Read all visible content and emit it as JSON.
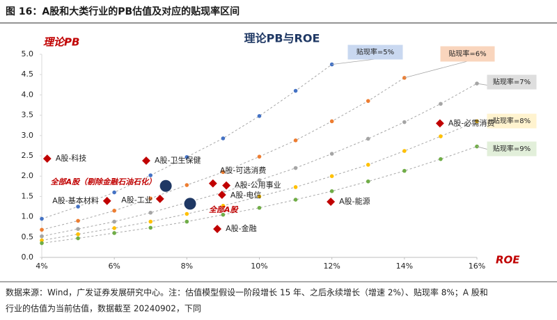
{
  "figure_title": "图 16：A股和大类行业的PB估值及对应的贴现率区间",
  "source": [
    "数据来源：Wind，广发证券发展研究中心。注：估值模型假设一阶段增长 15 年、之后永续增长（增速 2%）、贴现率 8%；A 股和",
    "行业的估值为当前估值，数据截至 20240902，下同"
  ],
  "chart_data": {
    "type": "scatter",
    "title": "理论PB与ROE",
    "y_label": "理论PB",
    "x_label": "ROE",
    "xlim": [
      4,
      16
    ],
    "xticks": [
      {
        "value": 4,
        "label": "4%"
      },
      {
        "value": 6,
        "label": "6%"
      },
      {
        "value": 8,
        "label": "8%"
      },
      {
        "value": 10,
        "label": "10%"
      },
      {
        "value": 12,
        "label": "12%"
      },
      {
        "value": 14,
        "label": "14%"
      },
      {
        "value": 16,
        "label": "16%"
      }
    ],
    "ylim": [
      0,
      5
    ],
    "yticks": [
      {
        "value": 0,
        "label": "0.0"
      },
      {
        "value": 0.5,
        "label": "0.5"
      },
      {
        "value": 1,
        "label": "1.0"
      },
      {
        "value": 1.5,
        "label": "1.5"
      },
      {
        "value": 2,
        "label": "2.0"
      },
      {
        "value": 2.5,
        "label": "2.5"
      },
      {
        "value": 3,
        "label": "3.0"
      },
      {
        "value": 3.5,
        "label": "3.5"
      },
      {
        "value": 4,
        "label": "4.0"
      },
      {
        "value": 4.5,
        "label": "4.5"
      },
      {
        "value": 5,
        "label": "5.0"
      }
    ],
    "series": [
      {
        "name": "贴现率=5%",
        "color": "#4472c4",
        "box_color": "#c9d8f0",
        "x": [
          4,
          5,
          6,
          7,
          8,
          9,
          10,
          11,
          12
        ],
        "values": [
          0.95,
          1.25,
          1.6,
          2.02,
          2.47,
          2.93,
          3.48,
          4.1,
          4.75
        ]
      },
      {
        "name": "贴现率=6%",
        "color": "#ed7d31",
        "box_color": "#f9d5bd",
        "x": [
          4,
          5,
          6,
          7,
          8,
          9,
          10,
          11,
          12,
          13,
          14
        ],
        "values": [
          0.68,
          0.9,
          1.15,
          1.45,
          1.78,
          2.1,
          2.48,
          2.88,
          3.35,
          3.85,
          4.42
        ]
      },
      {
        "name": "贴现率=7%",
        "color": "#a5a5a5",
        "box_color": "#dedede",
        "x": [
          4,
          5,
          6,
          7,
          8,
          9,
          10,
          11,
          12,
          13,
          14,
          15,
          16
        ],
        "values": [
          0.52,
          0.7,
          0.88,
          1.1,
          1.35,
          1.6,
          1.9,
          2.2,
          2.55,
          2.92,
          3.33,
          3.78,
          4.28
        ]
      },
      {
        "name": "贴现率=8%",
        "color": "#ffc000",
        "box_color": "#fff3cf",
        "x": [
          4,
          5,
          6,
          7,
          8,
          9,
          10,
          11,
          12,
          13,
          14,
          15,
          16
        ],
        "values": [
          0.42,
          0.57,
          0.72,
          0.88,
          1.07,
          1.27,
          1.5,
          1.73,
          2.0,
          2.28,
          2.62,
          2.98,
          3.35
        ]
      },
      {
        "name": "贴现率=9%",
        "color": "#70ad47",
        "box_color": "#e2efda",
        "x": [
          4,
          5,
          6,
          7,
          8,
          9,
          10,
          11,
          12,
          13,
          14,
          15,
          16
        ],
        "values": [
          0.35,
          0.47,
          0.6,
          0.73,
          0.88,
          1.05,
          1.22,
          1.42,
          1.63,
          1.87,
          2.13,
          2.42,
          2.73
        ]
      }
    ],
    "sectors": {
      "color": "#c00000",
      "points": [
        {
          "label": "A股-科技",
          "x": 4.15,
          "y": 2.43
        },
        {
          "label": "A股-卫生保健",
          "x": 6.88,
          "y": 2.38
        },
        {
          "label": "A股-可选消费",
          "x": 8.72,
          "y": 1.82
        },
        {
          "label": "A股-公用事业",
          "x": 9.09,
          "y": 1.77
        },
        {
          "label": "A股-电信",
          "x": 8.97,
          "y": 1.54
        },
        {
          "label": "A股-基本材料",
          "x": 5.8,
          "y": 1.39
        },
        {
          "label": "A股-工业",
          "x": 7.26,
          "y": 1.44
        },
        {
          "label": "A股-能源",
          "x": 11.97,
          "y": 1.37
        },
        {
          "label": "A股-金融",
          "x": 8.84,
          "y": 0.7
        },
        {
          "label": "A股-必需消费",
          "x": 14.98,
          "y": 3.3
        }
      ]
    },
    "market": {
      "color": "#1f3864",
      "label_color": "#c00000",
      "points": [
        {
          "label": "全部A股（剔除金融石油石化）",
          "x": 7.42,
          "y": 1.76
        },
        {
          "label": "全部A股",
          "x": 8.09,
          "y": 1.32
        }
      ]
    }
  }
}
